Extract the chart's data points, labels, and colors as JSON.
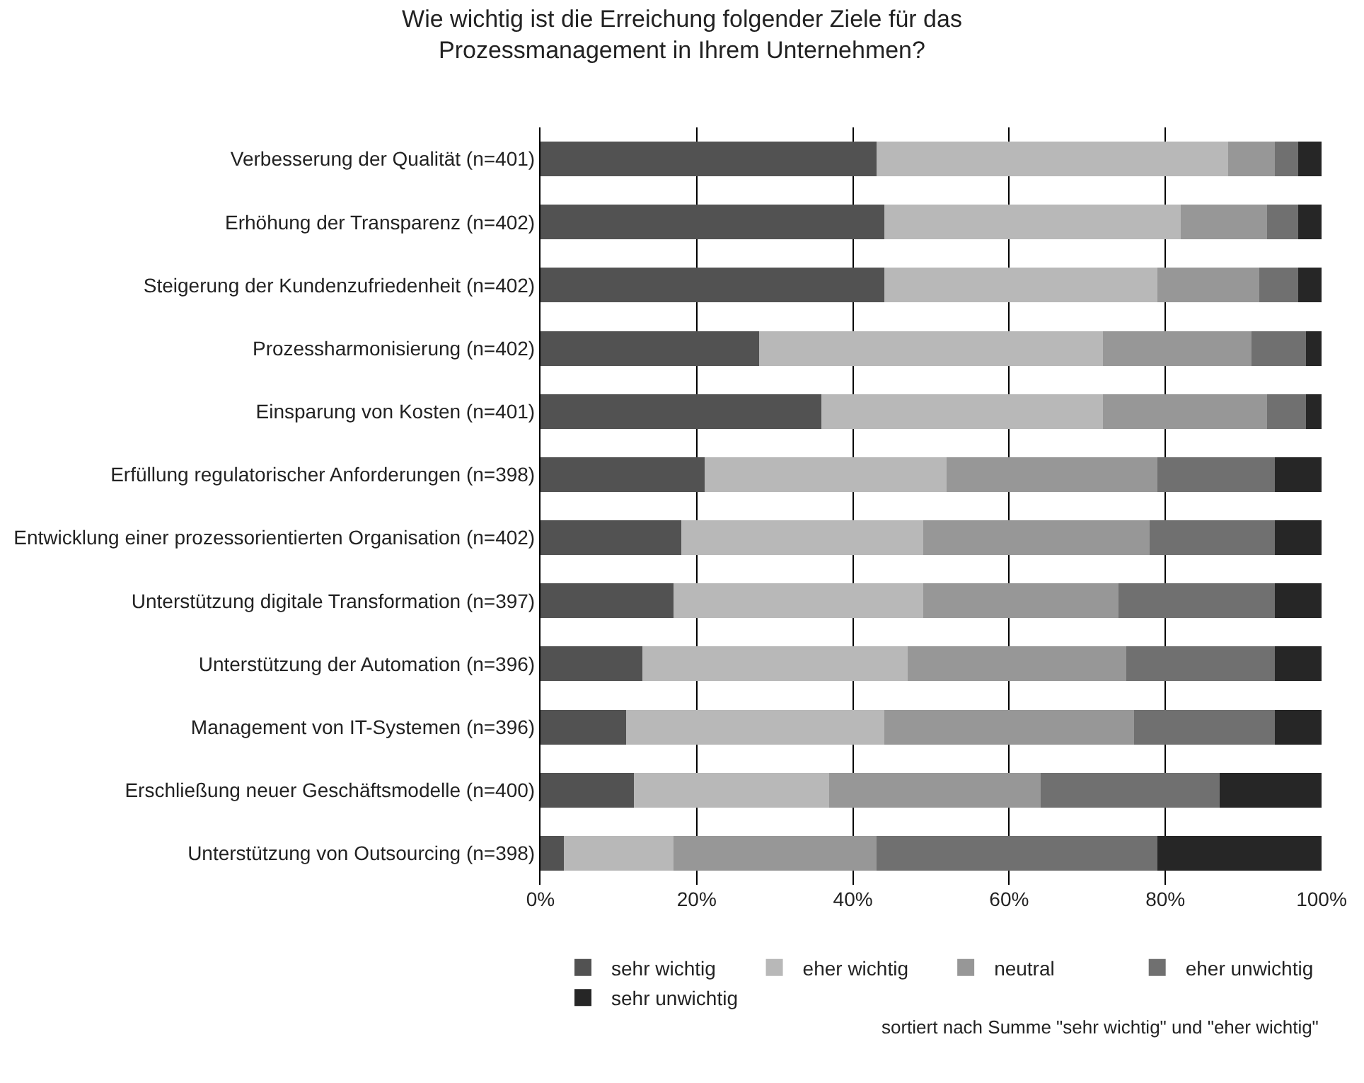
{
  "chart_data": {
    "type": "bar",
    "orientation": "horizontal",
    "stacked": true,
    "title": "Wie wichtig ist die Erreichung folgender Ziele für das\nProzessmanagement in Ihrem Unternehmen?",
    "categories": [
      "Verbesserung der Qualität (n=401)",
      "Erhöhung der Transparenz (n=402)",
      "Steigerung der Kundenzufriedenheit (n=402)",
      "Prozessharmonisierung (n=402)",
      "Einsparung von Kosten (n=401)",
      "Erfüllung regulatorischer Anforderungen (n=398)",
      "Entwicklung einer prozessorientierten Organisation (n=402)",
      "Unterstützung digitale Transformation (n=397)",
      "Unterstützung der Automation (n=396)",
      "Management von IT-Systemen (n=396)",
      "Erschließung neuer Geschäftsmodelle (n=400)",
      "Unterstützung von Outsourcing (n=398)"
    ],
    "series": [
      {
        "name": "sehr wichtig",
        "color": "#525252",
        "values": [
          43,
          44,
          44,
          28,
          36,
          21,
          18,
          17,
          13,
          11,
          12,
          3
        ]
      },
      {
        "name": "eher wichtig",
        "color": "#b8b8b8",
        "values": [
          45,
          38,
          35,
          44,
          36,
          31,
          31,
          32,
          34,
          33,
          25,
          14
        ]
      },
      {
        "name": "neutral",
        "color": "#979797",
        "values": [
          6,
          11,
          13,
          19,
          21,
          27,
          29,
          25,
          28,
          32,
          27,
          26
        ]
      },
      {
        "name": "eher unwichtig",
        "color": "#707070",
        "values": [
          3,
          4,
          5,
          7,
          5,
          15,
          16,
          20,
          19,
          18,
          23,
          36
        ]
      },
      {
        "name": "sehr unwichtig",
        "color": "#262626",
        "values": [
          3,
          3,
          3,
          2,
          2,
          6,
          6,
          6,
          6,
          6,
          13,
          21
        ]
      }
    ],
    "xlim": [
      0,
      100
    ],
    "xticks": [
      {
        "value": 0,
        "label": "0%"
      },
      {
        "value": 20,
        "label": "20%"
      },
      {
        "value": 40,
        "label": "40%"
      },
      {
        "value": 60,
        "label": "60%"
      },
      {
        "value": 80,
        "label": "80%"
      },
      {
        "value": 100,
        "label": "100%"
      }
    ],
    "grid": "x",
    "legend": "bottom",
    "annotations": [
      "sortiert nach Summe \"sehr wichtig\" und \"eher wichtig\""
    ]
  }
}
